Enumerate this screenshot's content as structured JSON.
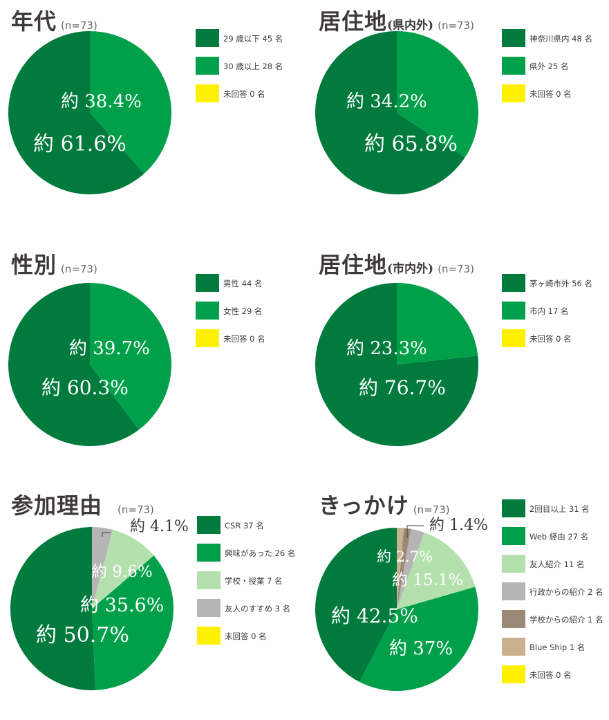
{
  "colors": {
    "dark_green": "#007a3d",
    "green": "#00a04a",
    "light_green": "#b4e0ad",
    "gray": "#b5b5b6",
    "brown": "#9c8877",
    "beige": "#c9b190",
    "yellow": "#fff100",
    "title": "#3e3a39"
  },
  "chart_data": [
    {
      "type": "pie",
      "title": "年代",
      "subtitle": "",
      "n_label": "(n=73)",
      "legend_placement": "right",
      "slices": [
        {
          "label": "29 歳以下 45 名",
          "value": 45,
          "color": "#007a3d",
          "pct_label": "約 61.6%"
        },
        {
          "label": "30 歳以上 28 名",
          "value": 28,
          "color": "#00a04a",
          "pct_label": "約 38.4%"
        },
        {
          "label": "未回答 0 名",
          "value": 0,
          "color": "#fff100",
          "pct_label": ""
        }
      ]
    },
    {
      "type": "pie",
      "title": "居住地",
      "subtitle": "(県内外)",
      "n_label": "(n=73)",
      "legend_placement": "right",
      "slices": [
        {
          "label": "神奈川県内 48 名",
          "value": 48,
          "color": "#007a3d",
          "pct_label": "約 65.8%"
        },
        {
          "label": "県外 25 名",
          "value": 25,
          "color": "#00a04a",
          "pct_label": "約 34.2%"
        },
        {
          "label": "未回答 0 名",
          "value": 0,
          "color": "#fff100",
          "pct_label": ""
        }
      ]
    },
    {
      "type": "pie",
      "title": "性別",
      "subtitle": "",
      "n_label": "(n=73)",
      "legend_placement": "right",
      "slices": [
        {
          "label": "男性 44 名",
          "value": 44,
          "color": "#007a3d",
          "pct_label": "約 60.3%"
        },
        {
          "label": "女性 29 名",
          "value": 29,
          "color": "#00a04a",
          "pct_label": "約 39.7%"
        },
        {
          "label": "未回答 0 名",
          "value": 0,
          "color": "#fff100",
          "pct_label": ""
        }
      ]
    },
    {
      "type": "pie",
      "title": "居住地",
      "subtitle": "(市内外)",
      "n_label": "(n=73)",
      "legend_placement": "right",
      "slices": [
        {
          "label": "茅ヶ崎市外 56 名",
          "value": 56,
          "color": "#007a3d",
          "pct_label": "約 76.7%"
        },
        {
          "label": "市内 17 名",
          "value": 17,
          "color": "#00a04a",
          "pct_label": "約 23.3%"
        },
        {
          "label": "未回答 0 名",
          "value": 0,
          "color": "#fff100",
          "pct_label": ""
        }
      ]
    },
    {
      "type": "pie",
      "title": "参加理由",
      "subtitle": "",
      "n_label": "(n=73)",
      "legend_placement": "right",
      "slices": [
        {
          "label": "CSR 37 名",
          "value": 37,
          "color": "#007a3d",
          "pct_label": "約 50.7%"
        },
        {
          "label": "興味があった 26 名",
          "value": 26,
          "color": "#00a04a",
          "pct_label": "約 35.6%"
        },
        {
          "label": "学校・授業 7 名",
          "value": 7,
          "color": "#b4e0ad",
          "pct_label": "約 9.6%"
        },
        {
          "label": "友人のすすめ 3 名",
          "value": 3,
          "color": "#b5b5b6",
          "pct_label": "約 4.1%"
        },
        {
          "label": "未回答 0 名",
          "value": 0,
          "color": "#fff100",
          "pct_label": ""
        }
      ]
    },
    {
      "type": "pie",
      "title": "きっかけ",
      "subtitle": "",
      "n_label": "(n=73)",
      "legend_placement": "right",
      "slices": [
        {
          "label": "2回目以上 31 名",
          "value": 31,
          "color": "#007a3d",
          "pct_label": "約 42.5%"
        },
        {
          "label": "Web 経由 27 名",
          "value": 27,
          "color": "#00a04a",
          "pct_label": "約 37%"
        },
        {
          "label": "友人紹介 11 名",
          "value": 11,
          "color": "#b4e0ad",
          "pct_label": "約 15.1%"
        },
        {
          "label": "行政からの紹介 2 名",
          "value": 2,
          "color": "#b5b5b6",
          "pct_label": "約 2.7%"
        },
        {
          "label": "学校からの紹介 1 名",
          "value": 1,
          "color": "#9c8877",
          "pct_label": "約 1.4%"
        },
        {
          "label": "Blue Ship 1 名",
          "value": 1,
          "color": "#c9b190",
          "pct_label": ""
        },
        {
          "label": "未回答 0 名",
          "value": 0,
          "color": "#fff100",
          "pct_label": ""
        }
      ]
    }
  ]
}
